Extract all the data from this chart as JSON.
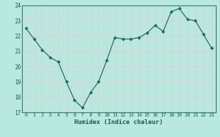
{
  "x": [
    0,
    1,
    2,
    3,
    4,
    5,
    6,
    7,
    8,
    9,
    10,
    11,
    12,
    13,
    14,
    15,
    16,
    17,
    18,
    19,
    20,
    21,
    22,
    23
  ],
  "y": [
    22.5,
    21.8,
    21.1,
    20.6,
    20.3,
    19.0,
    17.8,
    17.3,
    18.3,
    19.0,
    20.4,
    21.9,
    21.8,
    21.8,
    21.9,
    22.2,
    22.7,
    22.3,
    23.6,
    23.8,
    23.1,
    23.0,
    22.1,
    21.2
  ],
  "xlabel": "Humidex (Indice chaleur)",
  "ylim": [
    17,
    24
  ],
  "xlim": [
    -0.5,
    23.5
  ],
  "yticks": [
    17,
    18,
    19,
    20,
    21,
    22,
    23,
    24
  ],
  "xticks": [
    0,
    1,
    2,
    3,
    4,
    5,
    6,
    7,
    8,
    9,
    10,
    11,
    12,
    13,
    14,
    15,
    16,
    17,
    18,
    19,
    20,
    21,
    22,
    23
  ],
  "line_color": "#1a6b5a",
  "marker_color": "#1a6b5a",
  "bg_color": "#b8e8e0",
  "grid_color": "#e8c8c8",
  "fig_bg": "#b8e8e0",
  "spine_color": "#2a7a6a",
  "tick_color": "#1a5a4a",
  "xlabel_color": "#1a5a4a"
}
